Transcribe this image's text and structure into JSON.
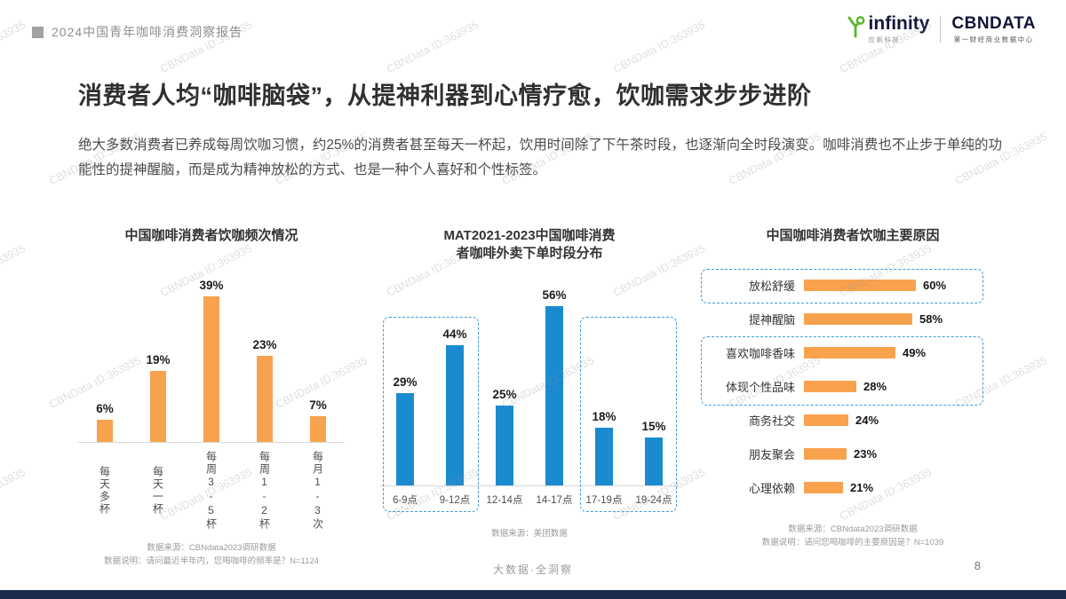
{
  "page": {
    "title": "消费者人均“咖啡脑袋”，从提神利器到心情疗愈，饮咖需求步步进阶",
    "intro": "绝大多数消费者已养成每周饮咖习惯，约25%的消费者甚至每天一杯起，饮用时间除了下午茶时段，也逐渐向全时段演变。咖啡消费也不止步于单纯的功能性的提神醒脑，而是成为精神放松的方式、也是一种个人喜好和个性标签。"
  },
  "header": {
    "report_tag": "2024中国青年咖啡消费洞察报告",
    "logos": {
      "infinity_label": "infinity",
      "infinity_sub": "应帆科技",
      "cbndata_label": "CBNDATA",
      "cbndata_sub": "第一财经商业数据中心"
    }
  },
  "watermark": {
    "text": "CBNData ID:363935"
  },
  "footer": {
    "slogan": "大数据·全洞察",
    "page_number": "8"
  },
  "colors": {
    "accent_orange": "#F8A24E",
    "accent_blue": "#1B8BD0",
    "dashed_blue": "#3F9BD8",
    "navy_bar": "#1A2B4C",
    "logo_green": "#5FB636"
  },
  "chart_data": [
    {
      "id": "frequency",
      "type": "bar",
      "title": "中国咖啡消费者饮咖频次情况",
      "categories": [
        "每天多杯",
        "每天一杯",
        "每周3-5杯",
        "每周1-2杯",
        "每月1-3次"
      ],
      "values": [
        6,
        19,
        39,
        23,
        7
      ],
      "unit": "%",
      "ylim": [
        0,
        45
      ],
      "bar_color": "#F8A24E",
      "source": [
        "数据来源：CBNdata2023调研数据",
        "数据说明：请问最近半年内，您喝咖啡的频率是？N=1124"
      ]
    },
    {
      "id": "delivery-time-slots",
      "type": "bar",
      "title": "MAT2021-2023中国咖啡消费者咖啡外卖下单时段分布",
      "title_lines": [
        "MAT2021-2023中国咖啡消费",
        "者咖啡外卖下单时段分布"
      ],
      "categories": [
        "6-9点",
        "9-12点",
        "12-14点",
        "14-17点",
        "17-19点",
        "19-24点"
      ],
      "values": [
        29,
        44,
        25,
        56,
        18,
        15
      ],
      "unit": "%",
      "ylim": [
        0,
        60
      ],
      "bar_color": "#1B8BD0",
      "highlight_groups": [
        [
          0,
          1
        ],
        [
          4,
          5
        ]
      ],
      "source": [
        "数据来源：美团数据"
      ]
    },
    {
      "id": "drinking-reasons",
      "type": "bar-horizontal",
      "title": "中国咖啡消费者饮咖主要原因",
      "categories": [
        "放松舒缓",
        "提神醒脑",
        "喜欢咖啡香味",
        "体现个性品味",
        "商务社交",
        "朋友聚会",
        "心理依赖"
      ],
      "values": [
        60,
        58,
        49,
        28,
        24,
        23,
        21
      ],
      "unit": "%",
      "xlim": [
        0,
        65
      ],
      "bar_color": "#F8A24E",
      "highlight_rows": [
        [
          0
        ],
        [
          2,
          3
        ]
      ],
      "source": [
        "数据来源：CBNdata2023调研数据",
        "数据说明：请问您喝咖啡的主要原因是？N=1039"
      ]
    }
  ]
}
